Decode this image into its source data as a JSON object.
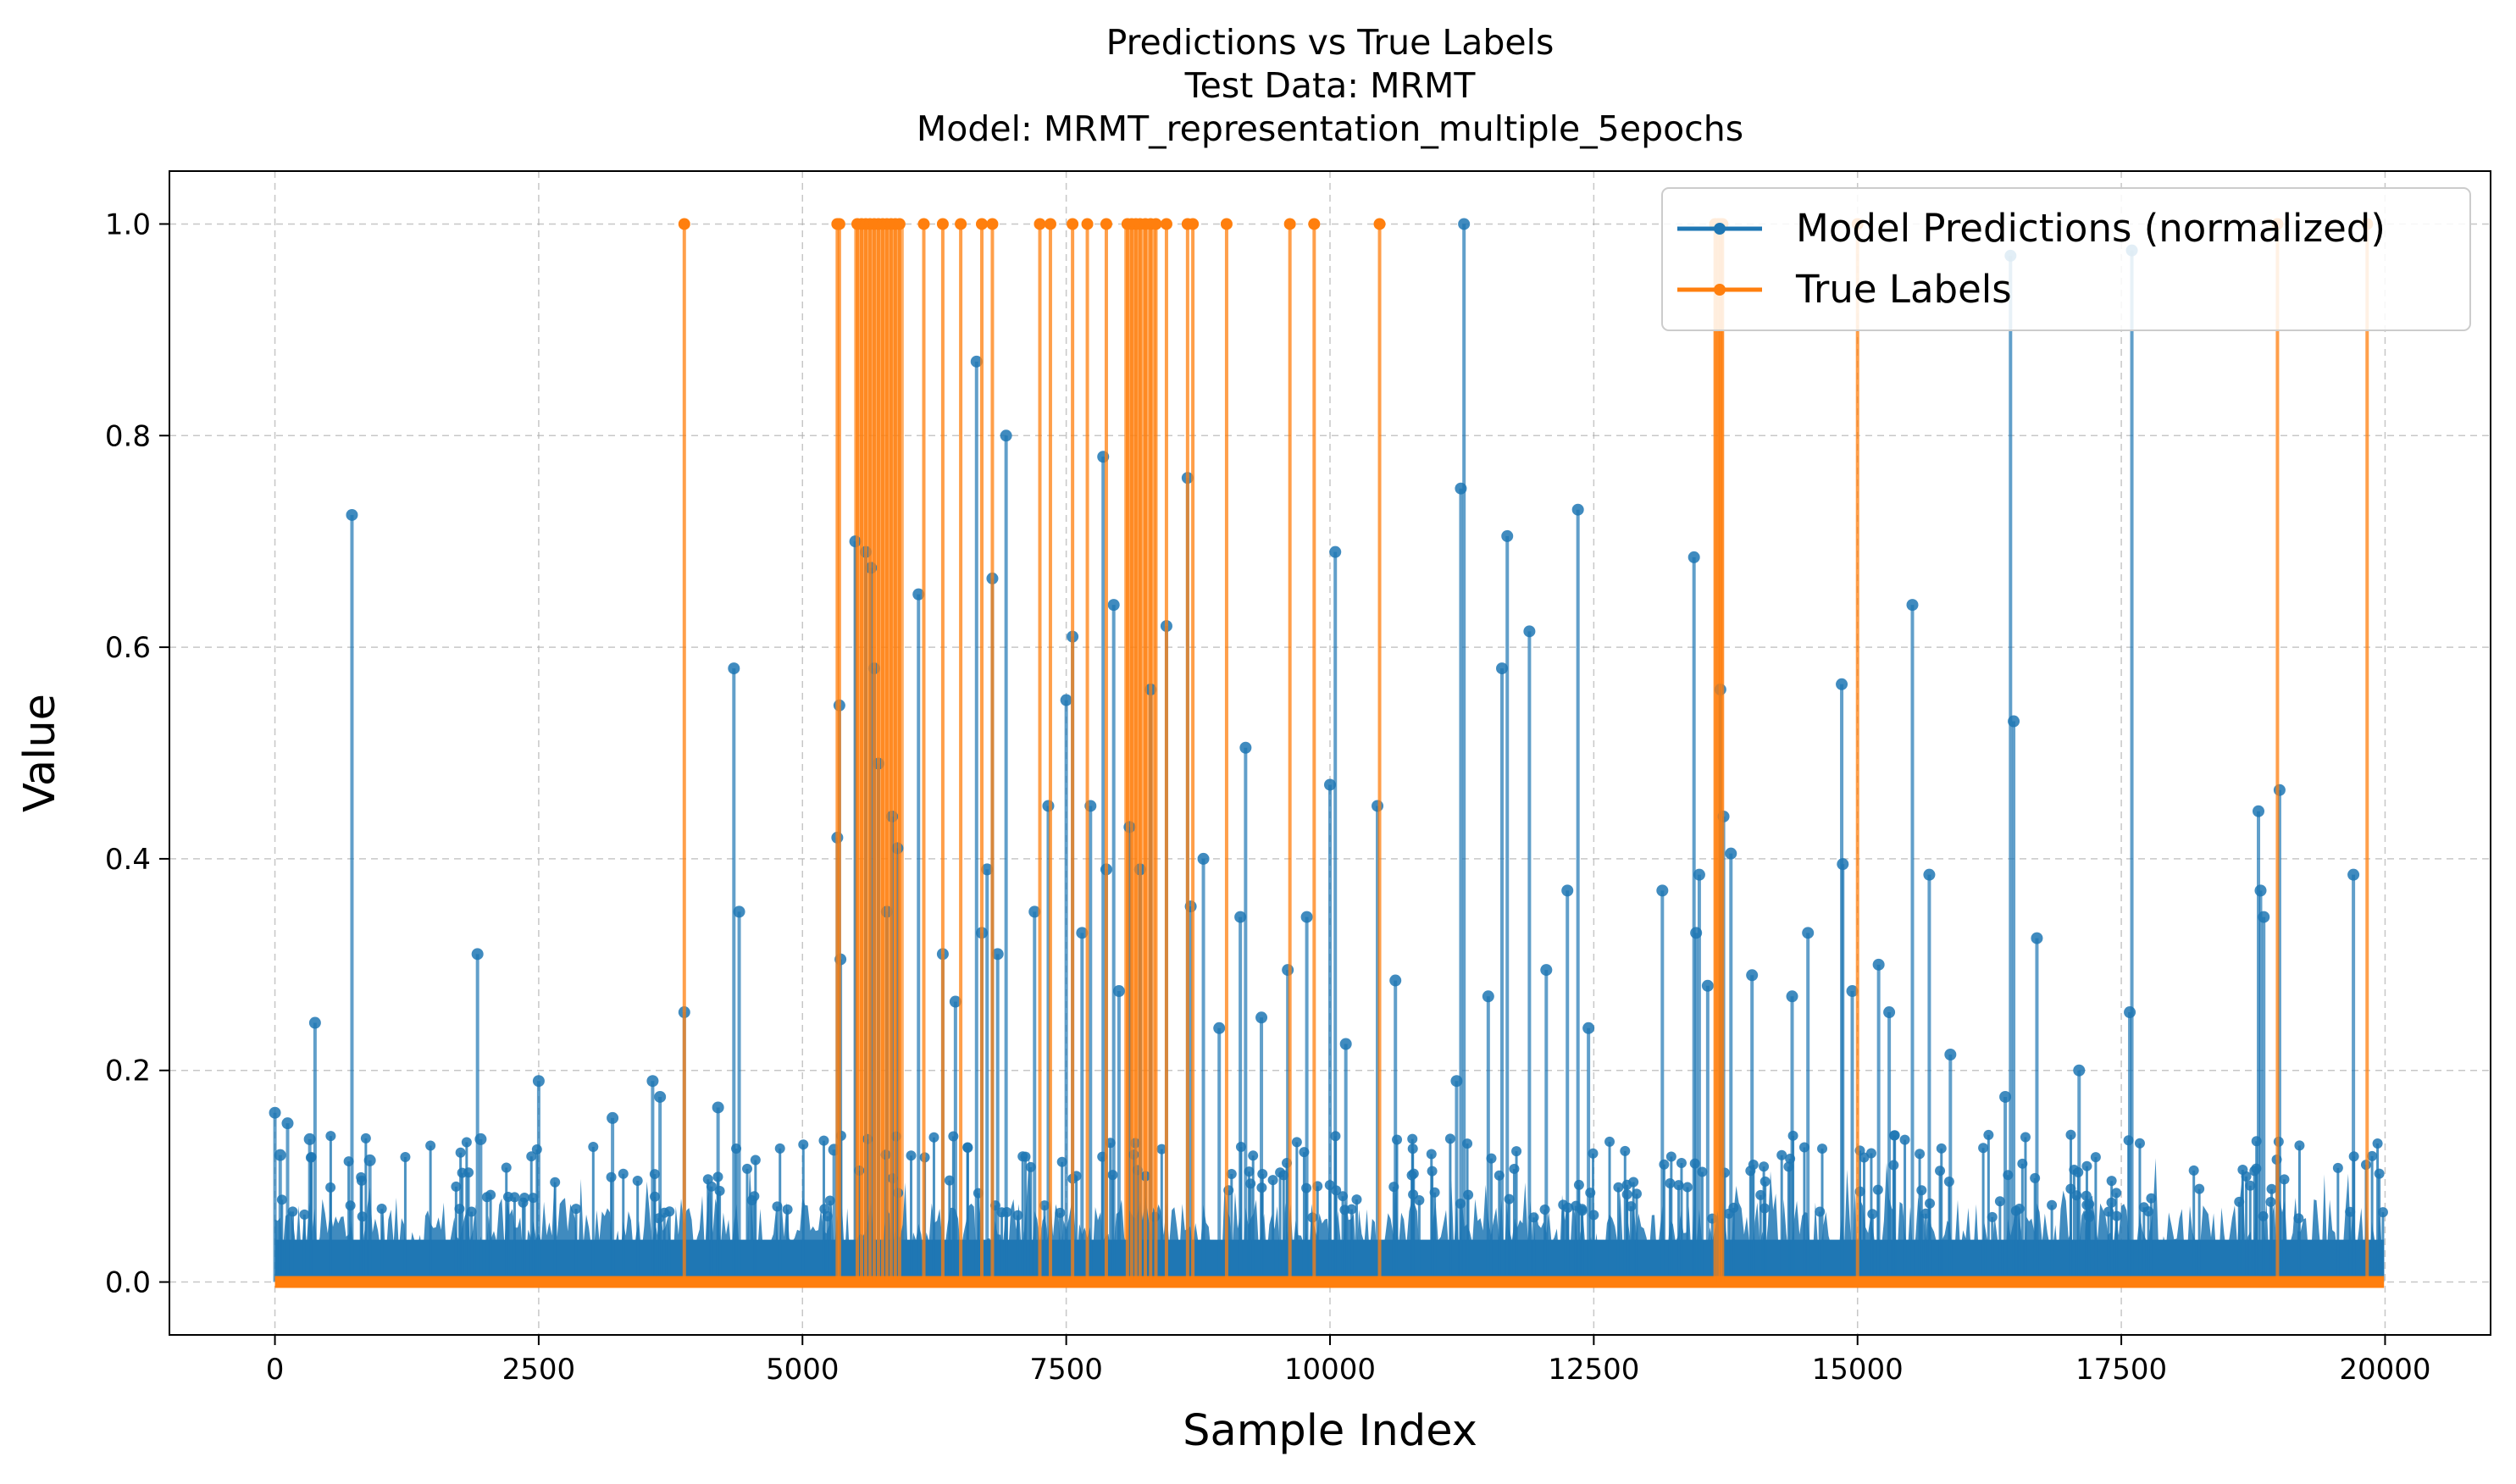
{
  "chart_data": {
    "type": "line",
    "title_lines": [
      "Predictions vs True Labels",
      "Test Data: MRMT",
      "Model: MRMT_representation_multiple_5epochs"
    ],
    "xlabel": "Sample Index",
    "ylabel": "Value",
    "xlim": [
      -1000,
      21000
    ],
    "ylim": [
      -0.05,
      1.05
    ],
    "x_ticks": [
      0,
      2500,
      5000,
      7500,
      10000,
      12500,
      15000,
      17500,
      20000
    ],
    "x_tick_labels": [
      "0",
      "2500",
      "5000",
      "7500",
      "10000",
      "12500",
      "15000",
      "17500",
      "20000"
    ],
    "y_ticks": [
      0.0,
      0.2,
      0.4,
      0.6,
      0.8,
      1.0
    ],
    "y_tick_labels": [
      "0.0",
      "0.2",
      "0.4",
      "0.6",
      "0.8",
      "1.0"
    ],
    "grid": true,
    "legend_position": "top-right",
    "series": [
      {
        "name": "Model Predictions (normalized)",
        "color": "#1f77b4",
        "peaks": [
          [
            0,
            0.16
          ],
          [
            50,
            0.12
          ],
          [
            120,
            0.15
          ],
          [
            330,
            0.135
          ],
          [
            380,
            0.245
          ],
          [
            730,
            0.725
          ],
          [
            900,
            0.115
          ],
          [
            1920,
            0.31
          ],
          [
            1950,
            0.135
          ],
          [
            2500,
            0.19
          ],
          [
            3200,
            0.155
          ],
          [
            3580,
            0.19
          ],
          [
            3650,
            0.175
          ],
          [
            3880,
            0.255
          ],
          [
            4200,
            0.165
          ],
          [
            4350,
            0.58
          ],
          [
            4400,
            0.35
          ],
          [
            5300,
            0.125
          ],
          [
            5330,
            0.42
          ],
          [
            5350,
            0.545
          ],
          [
            5360,
            0.305
          ],
          [
            5500,
            0.7
          ],
          [
            5600,
            0.69
          ],
          [
            5650,
            0.675
          ],
          [
            5680,
            0.58
          ],
          [
            5720,
            0.49
          ],
          [
            5800,
            0.35
          ],
          [
            5850,
            0.44
          ],
          [
            5900,
            0.41
          ],
          [
            6100,
            0.65
          ],
          [
            6330,
            0.31
          ],
          [
            6450,
            0.265
          ],
          [
            6650,
            0.87
          ],
          [
            6700,
            0.33
          ],
          [
            6750,
            0.39
          ],
          [
            6800,
            0.665
          ],
          [
            6850,
            0.31
          ],
          [
            6930,
            0.8
          ],
          [
            7200,
            0.35
          ],
          [
            7330,
            0.45
          ],
          [
            7500,
            0.55
          ],
          [
            7560,
            0.61
          ],
          [
            7650,
            0.33
          ],
          [
            7730,
            0.45
          ],
          [
            7850,
            0.78
          ],
          [
            7880,
            0.39
          ],
          [
            7950,
            0.64
          ],
          [
            8000,
            0.275
          ],
          [
            8100,
            0.43
          ],
          [
            8200,
            0.39
          ],
          [
            8300,
            0.56
          ],
          [
            8450,
            0.62
          ],
          [
            8650,
            0.76
          ],
          [
            8680,
            0.355
          ],
          [
            8800,
            0.4
          ],
          [
            8950,
            0.24
          ],
          [
            9150,
            0.345
          ],
          [
            9200,
            0.505
          ],
          [
            9350,
            0.25
          ],
          [
            9600,
            0.295
          ],
          [
            9780,
            0.345
          ],
          [
            10000,
            0.47
          ],
          [
            10050,
            0.69
          ],
          [
            10150,
            0.225
          ],
          [
            10450,
            0.45
          ],
          [
            10620,
            0.285
          ],
          [
            11200,
            0.19
          ],
          [
            11240,
            0.75
          ],
          [
            11270,
            1.0
          ],
          [
            11500,
            0.27
          ],
          [
            11630,
            0.58
          ],
          [
            11680,
            0.705
          ],
          [
            11890,
            0.615
          ],
          [
            12050,
            0.295
          ],
          [
            12250,
            0.37
          ],
          [
            12350,
            0.73
          ],
          [
            12450,
            0.24
          ],
          [
            13150,
            0.37
          ],
          [
            13450,
            0.685
          ],
          [
            13470,
            0.33
          ],
          [
            13500,
            0.385
          ],
          [
            13580,
            0.28
          ],
          [
            13700,
            0.56
          ],
          [
            13730,
            0.44
          ],
          [
            13800,
            0.405
          ],
          [
            14000,
            0.29
          ],
          [
            14380,
            0.27
          ],
          [
            14530,
            0.33
          ],
          [
            14850,
            0.565
          ],
          [
            14860,
            0.395
          ],
          [
            14950,
            0.275
          ],
          [
            15200,
            0.3
          ],
          [
            15300,
            0.255
          ],
          [
            15520,
            0.64
          ],
          [
            15680,
            0.385
          ],
          [
            15880,
            0.215
          ],
          [
            16400,
            0.175
          ],
          [
            16450,
            0.97
          ],
          [
            16480,
            0.53
          ],
          [
            16700,
            0.325
          ],
          [
            17100,
            0.2
          ],
          [
            17580,
            0.255
          ],
          [
            17600,
            0.975
          ],
          [
            18800,
            0.445
          ],
          [
            18820,
            0.37
          ],
          [
            18850,
            0.345
          ],
          [
            19000,
            0.465
          ],
          [
            19700,
            0.385
          ]
        ]
      },
      {
        "name": "True Labels",
        "color": "#ff7f0e",
        "positive_indices": [
          3880,
          5330,
          5350,
          5520,
          5560,
          5600,
          5640,
          5680,
          5720,
          5760,
          5800,
          5840,
          5880,
          5920,
          6150,
          6330,
          6500,
          6700,
          6800,
          7250,
          7350,
          7560,
          7700,
          7880,
          8080,
          8120,
          8160,
          8200,
          8250,
          8300,
          8350,
          8450,
          8650,
          8700,
          9020,
          9620,
          9850,
          10470,
          13650,
          13680,
          13700,
          13720,
          15000,
          18980,
          19830
        ],
        "dense_ranges": [
          [
            5490,
            5960
          ],
          [
            8050,
            8350
          ],
          [
            13640,
            13730
          ]
        ]
      }
    ]
  }
}
